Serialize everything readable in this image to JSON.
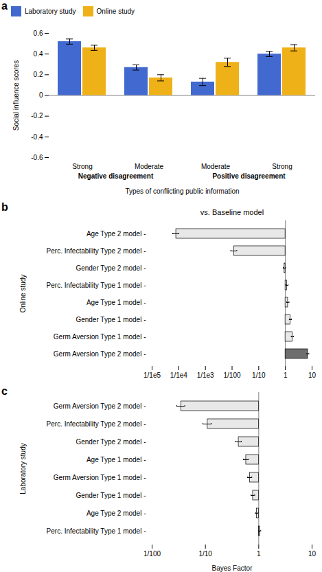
{
  "chart_data": [
    {
      "type": "bar",
      "panel_label": "a",
      "ylabel": "Social influence scores",
      "xlabel": "Types of conflicting public information",
      "categories": [
        "Strong",
        "Moderate",
        "Moderate",
        "Strong"
      ],
      "group_labels": [
        "Negative disagreement",
        "Positive disagreement"
      ],
      "series": [
        {
          "name": "Laboratory study",
          "values": [
            0.52,
            0.27,
            0.13,
            0.4
          ],
          "errors": [
            0.025,
            0.025,
            0.035,
            0.025
          ]
        },
        {
          "name": "Online study",
          "values": [
            0.46,
            0.17,
            0.32,
            0.46
          ],
          "errors": [
            0.025,
            0.03,
            0.04,
            0.03
          ]
        }
      ],
      "baseline": 0,
      "ylim": [
        -0.6,
        0.6
      ],
      "yticks": [
        -0.6,
        -0.4,
        -0.2,
        0.0,
        0.2,
        0.4,
        0.6
      ],
      "legend": "top"
    },
    {
      "type": "bar",
      "panel_label": "b",
      "orientation": "horizontal",
      "log": "x",
      "title": "vs. Baseline model",
      "ylabel": "Online study",
      "categories": [
        "Germ Aversion Type 2 model -",
        "Germ Aversion Type 1 model -",
        "Gender Type 1 model -",
        "Age Type 1 model -",
        "Perc. Infectability Type 1 model -",
        "Gender Type 2 model -",
        "Perc. Infectability Type 2 model -",
        "Age Type 2 model -"
      ],
      "values": [
        7.0,
        1.85,
        1.55,
        1.25,
        1.15,
        0.92,
        0.012,
        8e-05
      ],
      "errors_lo": [
        0.6,
        0.18,
        0.14,
        0.12,
        0.11,
        0.09,
        0.003,
        2e-05
      ],
      "errors_hi": [
        0.6,
        0.18,
        0.14,
        0.12,
        0.11,
        0.09,
        0.003,
        2e-05
      ],
      "colors": [
        "#6e6e6e",
        "#e8e8e8",
        "#e8e8e8",
        "#e8e8e8",
        "#e8e8e8",
        "#e8e8e8",
        "#e8e8e8",
        "#e8e8e8"
      ],
      "baseline": 1,
      "xlim": [
        1e-05,
        10
      ],
      "xticks": [
        {
          "value": 1e-05,
          "label": "1/1e5"
        },
        {
          "value": 0.0001,
          "label": "1/1e4"
        },
        {
          "value": 0.001,
          "label": "1/1e3"
        },
        {
          "value": 0.01,
          "label": "1/100"
        },
        {
          "value": 0.1,
          "label": "1/10"
        },
        1,
        10
      ]
    },
    {
      "type": "bar",
      "panel_label": "c",
      "orientation": "horizontal",
      "log": "x",
      "ylabel": "Laboratory study",
      "xlabel": "Bayes Factor",
      "categories": [
        "Perc. Infectability Type 1 model -",
        "Age Type 2 model -",
        "Gender Type 1 model -",
        "Germ Aversion Type 1 model -",
        "Age Type 1 model -",
        "Gender Type 2 model -",
        "Perc. Infectability Type 2 model -",
        "Germ Aversion Type 2 model -"
      ],
      "values": [
        1.05,
        0.92,
        0.78,
        0.68,
        0.58,
        0.42,
        0.11,
        0.035
      ],
      "errors_lo": [
        0.04,
        0.05,
        0.06,
        0.06,
        0.06,
        0.05,
        0.02,
        0.006
      ],
      "errors_hi": [
        0.04,
        0.05,
        0.06,
        0.06,
        0.06,
        0.05,
        0.02,
        0.006
      ],
      "colors": [
        "#6e6e6e",
        "#e8e8e8",
        "#e8e8e8",
        "#e8e8e8",
        "#e8e8e8",
        "#e8e8e8",
        "#e8e8e8",
        "#e8e8e8"
      ],
      "baseline": 1,
      "xlim": [
        0.01,
        10
      ],
      "xticks": [
        {
          "value": 0.01,
          "label": "1/100"
        },
        {
          "value": 0.1,
          "label": "1/10"
        },
        1,
        10
      ]
    }
  ]
}
